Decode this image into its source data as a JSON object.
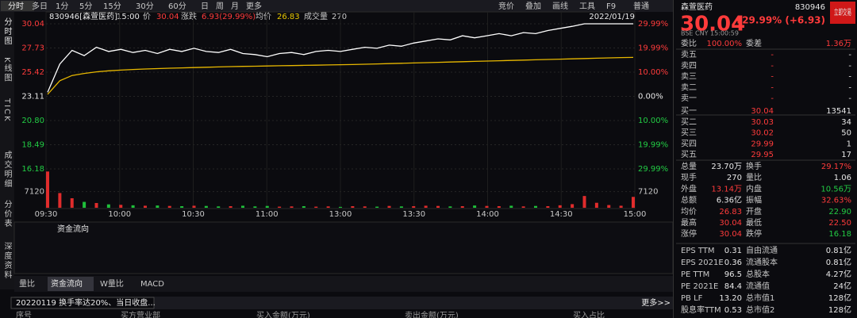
{
  "toolbar": {
    "left": [
      "分时",
      "多日",
      "1分",
      "5分",
      "15分",
      "30分",
      "60分",
      "日",
      "周",
      "月",
      "更多"
    ],
    "right": [
      "竞价",
      "叠加",
      "画线",
      "工具",
      "F9",
      "普通"
    ]
  },
  "side_tabs": [
    "分时图",
    "K线图",
    "TICK",
    "成交明细",
    "分价表",
    "深度资料"
  ],
  "chart": {
    "header": [
      "830946[森萱医药]",
      "15:00",
      "价",
      "30.04",
      "涨跌",
      "6.93(29.99%)",
      "均价",
      "26.83",
      "成交量",
      "270"
    ],
    "date": "2022/01/19",
    "ylim": [
      16.18,
      30.04
    ],
    "yticks": [
      30.04,
      27.73,
      25.42,
      23.11,
      {
        "value": 20.8,
        "label": "20.80"
      },
      18.49,
      16.18
    ],
    "pct_ticks": [
      "29.99%",
      "19.99%",
      "10.00%",
      "0.00%",
      "10.00%",
      "19.99%",
      "29.99%"
    ],
    "vol_ylim": [
      0,
      21000
    ],
    "vol_ticks": [
      7120
    ],
    "times": [
      "09:30",
      "10:00",
      "10:30",
      "11:00",
      "13:00",
      "13:30",
      "14:00",
      "14:30",
      "15:00"
    ],
    "price": [
      23.5,
      26.2,
      27.5,
      27.0,
      27.8,
      27.4,
      27.6,
      27.3,
      27.5,
      27.2,
      27.6,
      27.4,
      27.7,
      27.4,
      27.3,
      27.6,
      27.2,
      27.1,
      26.9,
      27.2,
      27.3,
      27.1,
      27.4,
      27.5,
      27.4,
      27.6,
      27.8,
      27.7,
      28.0,
      27.9,
      28.2,
      28.4,
      28.6,
      28.5,
      28.9,
      28.7,
      28.9,
      29.1,
      28.9,
      29.2,
      29.1,
      29.4,
      29.6,
      29.8,
      30.04,
      30.04,
      30.04,
      30.04,
      30.04
    ],
    "avg": [
      23.3,
      24.6,
      25.1,
      25.3,
      25.45,
      25.55,
      25.62,
      25.68,
      25.72,
      25.76,
      25.8,
      25.83,
      25.86,
      25.89,
      25.92,
      25.95,
      25.97,
      25.99,
      26.01,
      26.03,
      26.05,
      26.07,
      26.09,
      26.11,
      26.13,
      26.15,
      26.18,
      26.21,
      26.24,
      26.27,
      26.3,
      26.33,
      26.36,
      26.39,
      26.42,
      26.45,
      26.48,
      26.51,
      26.54,
      26.57,
      26.6,
      26.63,
      26.66,
      26.69,
      26.72,
      26.75,
      26.78,
      26.81,
      26.83
    ],
    "volume": [
      16000,
      6500,
      4200,
      2600,
      2100,
      1500,
      1300,
      1100,
      900,
      1000,
      800,
      700,
      900,
      800,
      600,
      700,
      900,
      600,
      800,
      500,
      600,
      700,
      500,
      600,
      400,
      700,
      600,
      500,
      800,
      600,
      700,
      900,
      800,
      600,
      700,
      1000,
      800,
      700,
      900,
      600,
      800,
      700,
      1100,
      1600,
      5200,
      2200,
      1200,
      900,
      4800
    ]
  },
  "lower_panel": {
    "title": "资金流向",
    "tabs": [
      "量比",
      "资金流向",
      "W量比",
      "MACD"
    ]
  },
  "bottom": {
    "select": "20220119 换手率达20%、当日收盘...",
    "more": "更多>>",
    "columns": [
      "序号",
      "买方营业部",
      "买入金额(万元)",
      "卖出金额(万元)",
      "买入占比"
    ]
  },
  "quote": {
    "name": "森萱医药",
    "code": "830946",
    "price": "30.04",
    "change": "+29.99% (+6.93)",
    "info": "BSE CNY 15:00:59",
    "button": "立即交易"
  },
  "order_book": [
    [
      "委比",
      "100.00%",
      "委差",
      "1.36万"
    ]
  ],
  "book": [
    [
      "卖五",
      "-",
      "-"
    ],
    [
      "卖四",
      "-",
      "-"
    ],
    [
      "卖三",
      "-",
      "-"
    ],
    [
      "卖二",
      "-",
      "-"
    ],
    [
      "卖一",
      "-",
      "-"
    ],
    [
      "买一",
      "30.04",
      "13541"
    ],
    [
      "买二",
      "30.03",
      "34"
    ],
    [
      "买三",
      "30.02",
      "50"
    ],
    [
      "买四",
      "29.99",
      "1"
    ],
    [
      "买五",
      "29.95",
      "17"
    ]
  ],
  "stats": [
    [
      "总量",
      "23.70万",
      "换手",
      "29.17%"
    ],
    [
      "现手",
      "270",
      "量比",
      "1.06"
    ],
    [
      "外盘",
      "13.14万",
      "内盘",
      "10.56万"
    ],
    [
      "总额",
      "6.36亿",
      "振幅",
      "32.63%"
    ],
    [
      "均价",
      "26.83",
      "开盘",
      "22.90"
    ],
    [
      "最高",
      "30.04",
      "最低",
      "22.50"
    ],
    [
      "涨停",
      "30.04",
      "跌停",
      "16.18"
    ]
  ],
  "fundamentals": [
    [
      "EPS TTM",
      "0.31",
      "自由流通",
      "0.81亿"
    ],
    [
      "EPS 2021E",
      "0.36",
      "流通股本",
      "0.81亿"
    ],
    [
      "PE TTM",
      "96.5",
      "总股本",
      "4.27亿"
    ],
    [
      "PE 2021E",
      "84.4",
      "流通值",
      "24亿"
    ],
    [
      "PB LF",
      "13.20",
      "总市值1",
      "128亿"
    ],
    [
      "股息率TTM",
      "0.53",
      "总市值2",
      "128亿"
    ]
  ]
}
